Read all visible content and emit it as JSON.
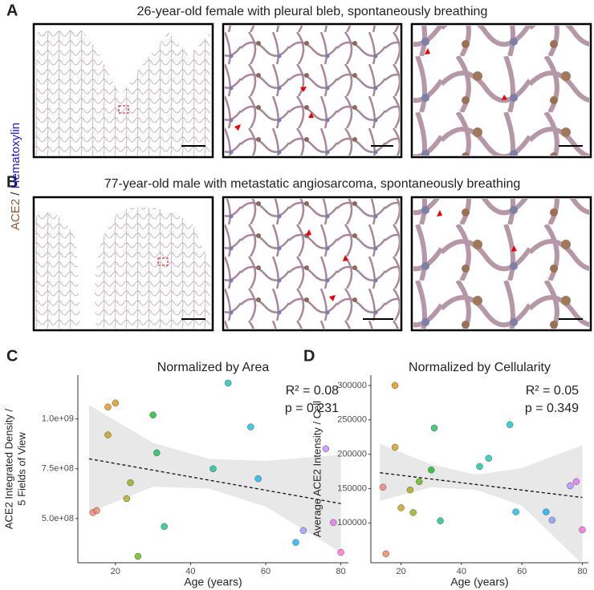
{
  "panels": {
    "A": {
      "label": "A",
      "title": "26-year-old female with pleural bleb, spontaneously breathing"
    },
    "B": {
      "label": "B",
      "title": "77-year-old male with metastatic angiosarcoma, spontaneously breathing"
    }
  },
  "stain_label": {
    "marker": "ACE2",
    "separator": " / ",
    "counterstain": "Hematoxylin"
  },
  "chart_data": [
    {
      "type": "scatter",
      "panel": "C",
      "title": "Normalized by Area",
      "xlabel": "Age (years)",
      "ylabel": [
        "ACE2 Integrated Density /",
        "5 Fields of View"
      ],
      "x": [
        14,
        15,
        18,
        20,
        18,
        23,
        24,
        26,
        30,
        31,
        33,
        46,
        50,
        56,
        58,
        68,
        70,
        76,
        78,
        80
      ],
      "values": [
        530000000,
        540000000,
        1060000000,
        1080000000,
        920000000,
        600000000,
        680000000,
        310000000,
        1020000000,
        830000000,
        460000000,
        750000000,
        1180000000,
        960000000,
        700000000,
        380000000,
        440000000,
        850000000,
        480000000,
        330000000
      ],
      "colors": [
        "#f8766d",
        "#f07e4c",
        "#e38900",
        "#d39200",
        "#c09b00",
        "#a8a400",
        "#8aab00",
        "#5eb300",
        "#00b816",
        "#00bc51",
        "#00bf77",
        "#00c19a",
        "#00c0b8",
        "#00bcd4",
        "#00b5ee",
        "#00a9ff",
        "#8b93ff",
        "#b983ff",
        "#e76bf3",
        "#fd61d1"
      ],
      "fit": {
        "x": [
          13,
          80
        ],
        "y": [
          800000000,
          575000000
        ]
      },
      "band": {
        "x": [
          13,
          30,
          45,
          60,
          80
        ],
        "upper": [
          1070000000,
          880000000,
          800000000,
          790000000,
          820000000
        ],
        "lower": [
          530000000,
          660000000,
          650000000,
          560000000,
          330000000
        ]
      },
      "xlim": [
        10,
        82
      ],
      "ylim": [
        278000000,
        1220000000
      ],
      "xticks": [
        20,
        40,
        60,
        80
      ],
      "yticks": [
        {
          "value": 500000000,
          "label": "5.0e+08"
        },
        {
          "value": 750000000,
          "label": "7.5e+08"
        },
        {
          "value": 1000000000,
          "label": "1.0e+09"
        }
      ],
      "annotations": [
        "R² = 0.08",
        "p = 0.231"
      ],
      "grid": false
    },
    {
      "type": "scatter",
      "panel": "D",
      "title": "Normalized by Cellularity",
      "xlabel": "Age (years)",
      "ylabel": [
        "Average ACE2 Intensity / Cell"
      ],
      "x": [
        14,
        15,
        18,
        18,
        20,
        23,
        24,
        26,
        30,
        31,
        33,
        46,
        49,
        56,
        58,
        68,
        70,
        76,
        78,
        80
      ],
      "values": [
        152000,
        55000,
        300000,
        210000,
        122000,
        148000,
        115000,
        160000,
        177000,
        238000,
        103000,
        182000,
        194000,
        243000,
        116000,
        116000,
        104000,
        154000,
        160000,
        90000
      ],
      "colors": [
        "#f8766d",
        "#f07e4c",
        "#e38900",
        "#d39200",
        "#c09b00",
        "#a8a400",
        "#8aab00",
        "#5eb300",
        "#00b816",
        "#00bc51",
        "#00bf77",
        "#00c19a",
        "#00c0b8",
        "#00bcd4",
        "#00b5ee",
        "#00a9ff",
        "#8b93ff",
        "#b983ff",
        "#e76bf3",
        "#fd61d1"
      ],
      "fit": {
        "x": [
          13,
          80
        ],
        "y": [
          173000,
          137000
        ]
      },
      "band": {
        "x": [
          13,
          30,
          45,
          60,
          80
        ],
        "upper": [
          215000,
          185000,
          170000,
          180000,
          213000
        ],
        "lower": [
          132000,
          152000,
          148000,
          125000,
          40000
        ]
      },
      "xlim": [
        10,
        82
      ],
      "ylim": [
        42000,
        315000
      ],
      "xticks": [
        20,
        40,
        60,
        80
      ],
      "yticks": [
        100000,
        150000,
        200000,
        250000,
        300000
      ],
      "annotations": [
        "R² = 0.05",
        "p = 0.349"
      ],
      "grid": false
    }
  ]
}
